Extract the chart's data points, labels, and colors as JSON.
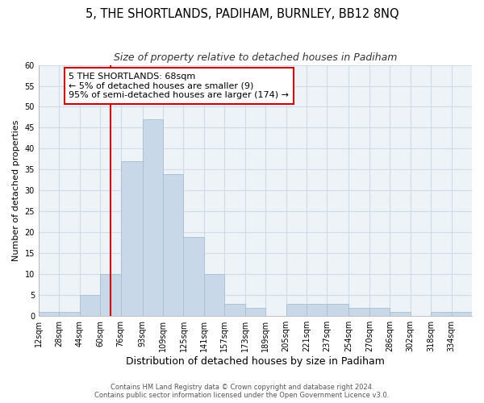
{
  "title": "5, THE SHORTLANDS, PADIHAM, BURNLEY, BB12 8NQ",
  "subtitle": "Size of property relative to detached houses in Padiham",
  "xlabel": "Distribution of detached houses by size in Padiham",
  "ylabel": "Number of detached properties",
  "bin_labels": [
    "12sqm",
    "28sqm",
    "44sqm",
    "60sqm",
    "76sqm",
    "93sqm",
    "109sqm",
    "125sqm",
    "141sqm",
    "157sqm",
    "173sqm",
    "189sqm",
    "205sqm",
    "221sqm",
    "237sqm",
    "254sqm",
    "270sqm",
    "286sqm",
    "302sqm",
    "318sqm",
    "334sqm"
  ],
  "bin_edges": [
    12,
    28,
    44,
    60,
    76,
    93,
    109,
    125,
    141,
    157,
    173,
    189,
    205,
    221,
    237,
    254,
    270,
    286,
    302,
    318,
    334,
    350
  ],
  "bar_values": [
    1,
    1,
    5,
    10,
    37,
    47,
    34,
    19,
    10,
    3,
    2,
    0,
    3,
    3,
    3,
    2,
    2,
    1,
    0,
    1,
    1
  ],
  "bar_color": "#c8d8e8",
  "bar_edge_color": "#a8bfcf",
  "grid_color": "#d0dce8",
  "vline_x": 68,
  "vline_color": "#cc0000",
  "annotation_line1": "5 THE SHORTLANDS: 68sqm",
  "annotation_line2": "← 5% of detached houses are smaller (9)",
  "annotation_line3": "95% of semi-detached houses are larger (174) →",
  "annotation_box_edge": "#cc0000",
  "annotation_box_face": "#ffffff",
  "ylim": [
    0,
    60
  ],
  "yticks": [
    0,
    5,
    10,
    15,
    20,
    25,
    30,
    35,
    40,
    45,
    50,
    55,
    60
  ],
  "footer_line1": "Contains HM Land Registry data © Crown copyright and database right 2024.",
  "footer_line2": "Contains public sector information licensed under the Open Government Licence v3.0.",
  "title_fontsize": 10.5,
  "subtitle_fontsize": 9,
  "xlabel_fontsize": 9,
  "ylabel_fontsize": 8,
  "tick_fontsize": 7,
  "footer_fontsize": 6,
  "annotation_fontsize": 8
}
